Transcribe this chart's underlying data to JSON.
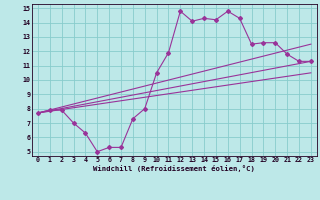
{
  "background_color": "#bde8e8",
  "line_color": "#993399",
  "grid_color": "#88cccc",
  "xlim": [
    -0.5,
    23.5
  ],
  "ylim": [
    4.7,
    15.3
  ],
  "yticks": [
    5,
    6,
    7,
    8,
    9,
    10,
    11,
    12,
    13,
    14,
    15
  ],
  "xticks": [
    0,
    1,
    2,
    3,
    4,
    5,
    6,
    7,
    8,
    9,
    10,
    11,
    12,
    13,
    14,
    15,
    16,
    17,
    18,
    19,
    20,
    21,
    22,
    23
  ],
  "xlabel": "Windchill (Refroidissement éolien,°C)",
  "curve_x": [
    0,
    1,
    2,
    3,
    4,
    5,
    6,
    7,
    8,
    9,
    10,
    11,
    12,
    13,
    14,
    15,
    16,
    17,
    18,
    19,
    20,
    21,
    22,
    23
  ],
  "curve_y": [
    7.7,
    7.9,
    7.9,
    7.0,
    6.3,
    5.0,
    5.3,
    5.3,
    7.3,
    8.0,
    10.5,
    11.9,
    14.8,
    14.1,
    14.3,
    14.2,
    14.8,
    14.3,
    12.5,
    12.6,
    12.6,
    11.8,
    11.3,
    11.3
  ],
  "diag_lines": [
    {
      "x": [
        0,
        23
      ],
      "y": [
        7.7,
        12.5
      ]
    },
    {
      "x": [
        0,
        23
      ],
      "y": [
        7.7,
        11.3
      ]
    },
    {
      "x": [
        0,
        23
      ],
      "y": [
        7.7,
        10.5
      ]
    }
  ]
}
